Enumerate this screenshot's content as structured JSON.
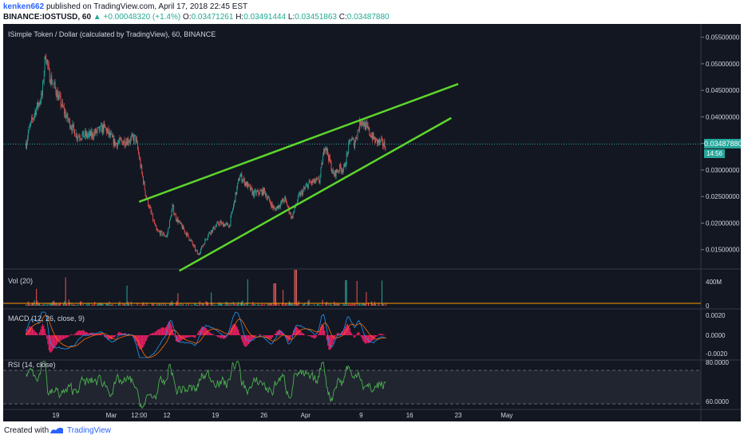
{
  "header": {
    "user": "kenken662",
    "published_text": "published on TradingView.com, April 17, 2018 22:45 EST",
    "symbol": "BINANCE:IOSTUSD, 60",
    "change": "▲ +0.00048320 (+1.4%)",
    "o_label": "O:",
    "o_value": "0.03471261",
    "h_label": "H:",
    "h_value": "0.03491444",
    "l_label": "L:",
    "l_value": "0.03451863",
    "c_label": "C:",
    "c_value": "0.03487880"
  },
  "chart_title": "ISimple Token / Dollar (calculated by TradingView), 60, BINANCE",
  "price_tag": "0.03487880",
  "time_tag": "14:56",
  "footer": {
    "created": "Created with",
    "brand": "TradingView"
  },
  "colors": {
    "background": "#131722",
    "up": "#26a69a",
    "down": "#ef5350",
    "trendline": "#5cd62c",
    "rsi": "#4caf50",
    "macd": "#2196f3",
    "signal": "#ff6d00",
    "hist": "#e91e63"
  },
  "chart_data": {
    "type": "line",
    "price_panel": {
      "ylim": [
        0.0115,
        0.0575
      ],
      "yticks": [
        "0.05500000",
        "0.05000000",
        "0.04500000",
        "0.04000000",
        "0.03500000",
        "0.03000000",
        "0.02500000",
        "0.02000000",
        "0.01500000"
      ],
      "x_days": [
        -4.3,
        -4.0,
        -3.0,
        -2.0,
        -1.5,
        -1.0,
        0.0,
        1.5,
        3.0,
        5.0,
        7.0,
        8.5,
        10.0,
        11.5,
        13.0,
        14.5,
        16.0,
        16.8,
        17.3,
        18.3,
        19.3,
        20.5,
        22.0,
        23.5,
        25.0,
        26.5,
        28.5,
        30.0,
        31.5,
        33.0,
        34.0,
        35.0,
        36.5,
        38.0,
        38.8,
        39.3,
        40.0,
        41.0,
        41.5,
        42.5,
        43.0,
        44.0,
        45.0,
        46.0,
        47.0,
        47.6
      ],
      "close": [
        0.035,
        0.037,
        0.041,
        0.044,
        0.052,
        0.048,
        0.045,
        0.04,
        0.0365,
        0.0365,
        0.038,
        0.035,
        0.0355,
        0.036,
        0.025,
        0.0185,
        0.0175,
        0.023,
        0.021,
        0.019,
        0.017,
        0.014,
        0.018,
        0.02,
        0.0195,
        0.029,
        0.0255,
        0.026,
        0.0225,
        0.0245,
        0.021,
        0.025,
        0.0275,
        0.028,
        0.035,
        0.0325,
        0.029,
        0.0305,
        0.03,
        0.036,
        0.035,
        0.0395,
        0.0375,
        0.0355,
        0.035,
        0.0345
      ],
      "trendlines": [
        {
          "x": [
            12.0,
            58.0
          ],
          "y": [
            0.024,
            0.0462
          ]
        },
        {
          "x": [
            17.8,
            57.0
          ],
          "y": [
            0.011,
            0.0398
          ]
        }
      ],
      "last_price": "0.03487880"
    },
    "volume_panel": {
      "title": "Vol (20)",
      "yticks": [
        "400M",
        "0"
      ]
    },
    "macd_panel": {
      "title": "MACD (12, 26, close, 9)",
      "yticks": [
        "0.0020",
        "0.0000",
        "-0.0020"
      ]
    },
    "rsi_panel": {
      "title": "RSI (14, close)",
      "yticks": [
        "80.0000",
        "60.0000"
      ],
      "bands": [
        70,
        30
      ]
    },
    "x_tick_labels": [
      "19",
      "Mar",
      "12:00",
      "12",
      "19",
      "26",
      "Apr",
      "9",
      "16",
      "23",
      "May"
    ],
    "x_tick_days": [
      0,
      8,
      12,
      16,
      23,
      30,
      36,
      44,
      51,
      58,
      65
    ]
  }
}
